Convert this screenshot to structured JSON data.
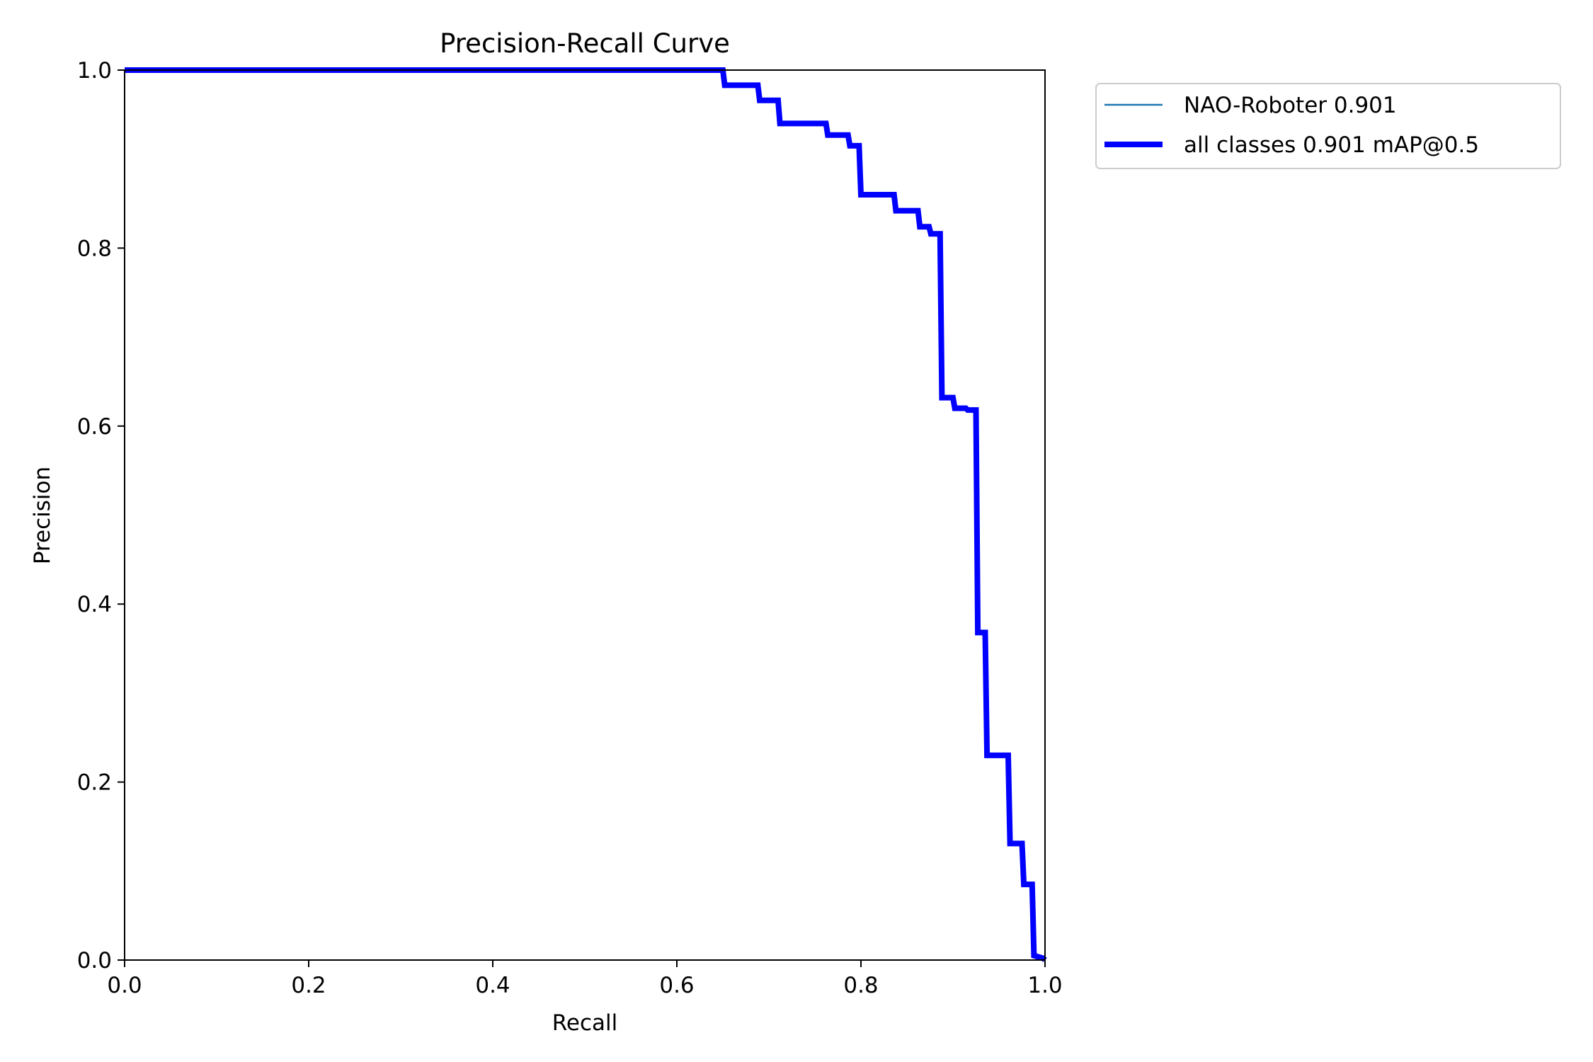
{
  "chart_data": {
    "type": "line",
    "title": "Precision-Recall Curve",
    "xlabel": "Recall",
    "ylabel": "Precision",
    "xlim": [
      0,
      1
    ],
    "ylim": [
      0,
      1
    ],
    "xticks": [
      "0.0",
      "0.2",
      "0.4",
      "0.6",
      "0.8",
      "1.0"
    ],
    "yticks": [
      "0.0",
      "0.2",
      "0.4",
      "0.6",
      "0.8",
      "1.0"
    ],
    "grid": false,
    "legend_position": "outside-top-right",
    "series": [
      {
        "name": "NAO-Roboter 0.901",
        "color": "#1f77b4",
        "style": "thin",
        "x": [
          0.0,
          0.65,
          0.652,
          0.688,
          0.69,
          0.71,
          0.712,
          0.762,
          0.764,
          0.786,
          0.788,
          0.798,
          0.8,
          0.836,
          0.838,
          0.862,
          0.864,
          0.874,
          0.876,
          0.886,
          0.888,
          0.9,
          0.902,
          0.914,
          0.916,
          0.925,
          0.927,
          0.935,
          0.937,
          0.96,
          0.962,
          0.975,
          0.977,
          0.986,
          0.988,
          0.998,
          1.0
        ],
        "y": [
          1.0,
          1.0,
          0.983,
          0.983,
          0.966,
          0.966,
          0.94,
          0.94,
          0.927,
          0.927,
          0.915,
          0.915,
          0.86,
          0.86,
          0.842,
          0.842,
          0.824,
          0.824,
          0.816,
          0.816,
          0.632,
          0.632,
          0.62,
          0.62,
          0.618,
          0.618,
          0.368,
          0.368,
          0.23,
          0.23,
          0.131,
          0.131,
          0.085,
          0.085,
          0.005,
          0.002,
          0.0
        ]
      },
      {
        "name": "all classes 0.901 mAP@0.5",
        "color": "#0000ff",
        "style": "thick",
        "x": [
          0.0,
          0.65,
          0.652,
          0.688,
          0.69,
          0.71,
          0.712,
          0.762,
          0.764,
          0.786,
          0.788,
          0.798,
          0.8,
          0.836,
          0.838,
          0.862,
          0.864,
          0.874,
          0.876,
          0.886,
          0.888,
          0.9,
          0.902,
          0.914,
          0.916,
          0.925,
          0.927,
          0.935,
          0.937,
          0.96,
          0.962,
          0.975,
          0.977,
          0.986,
          0.988,
          0.998,
          1.0
        ],
        "y": [
          1.0,
          1.0,
          0.983,
          0.983,
          0.966,
          0.966,
          0.94,
          0.94,
          0.927,
          0.927,
          0.915,
          0.915,
          0.86,
          0.86,
          0.842,
          0.842,
          0.824,
          0.824,
          0.816,
          0.816,
          0.632,
          0.632,
          0.62,
          0.62,
          0.618,
          0.618,
          0.368,
          0.368,
          0.23,
          0.23,
          0.131,
          0.131,
          0.085,
          0.085,
          0.005,
          0.002,
          0.0
        ]
      }
    ]
  }
}
